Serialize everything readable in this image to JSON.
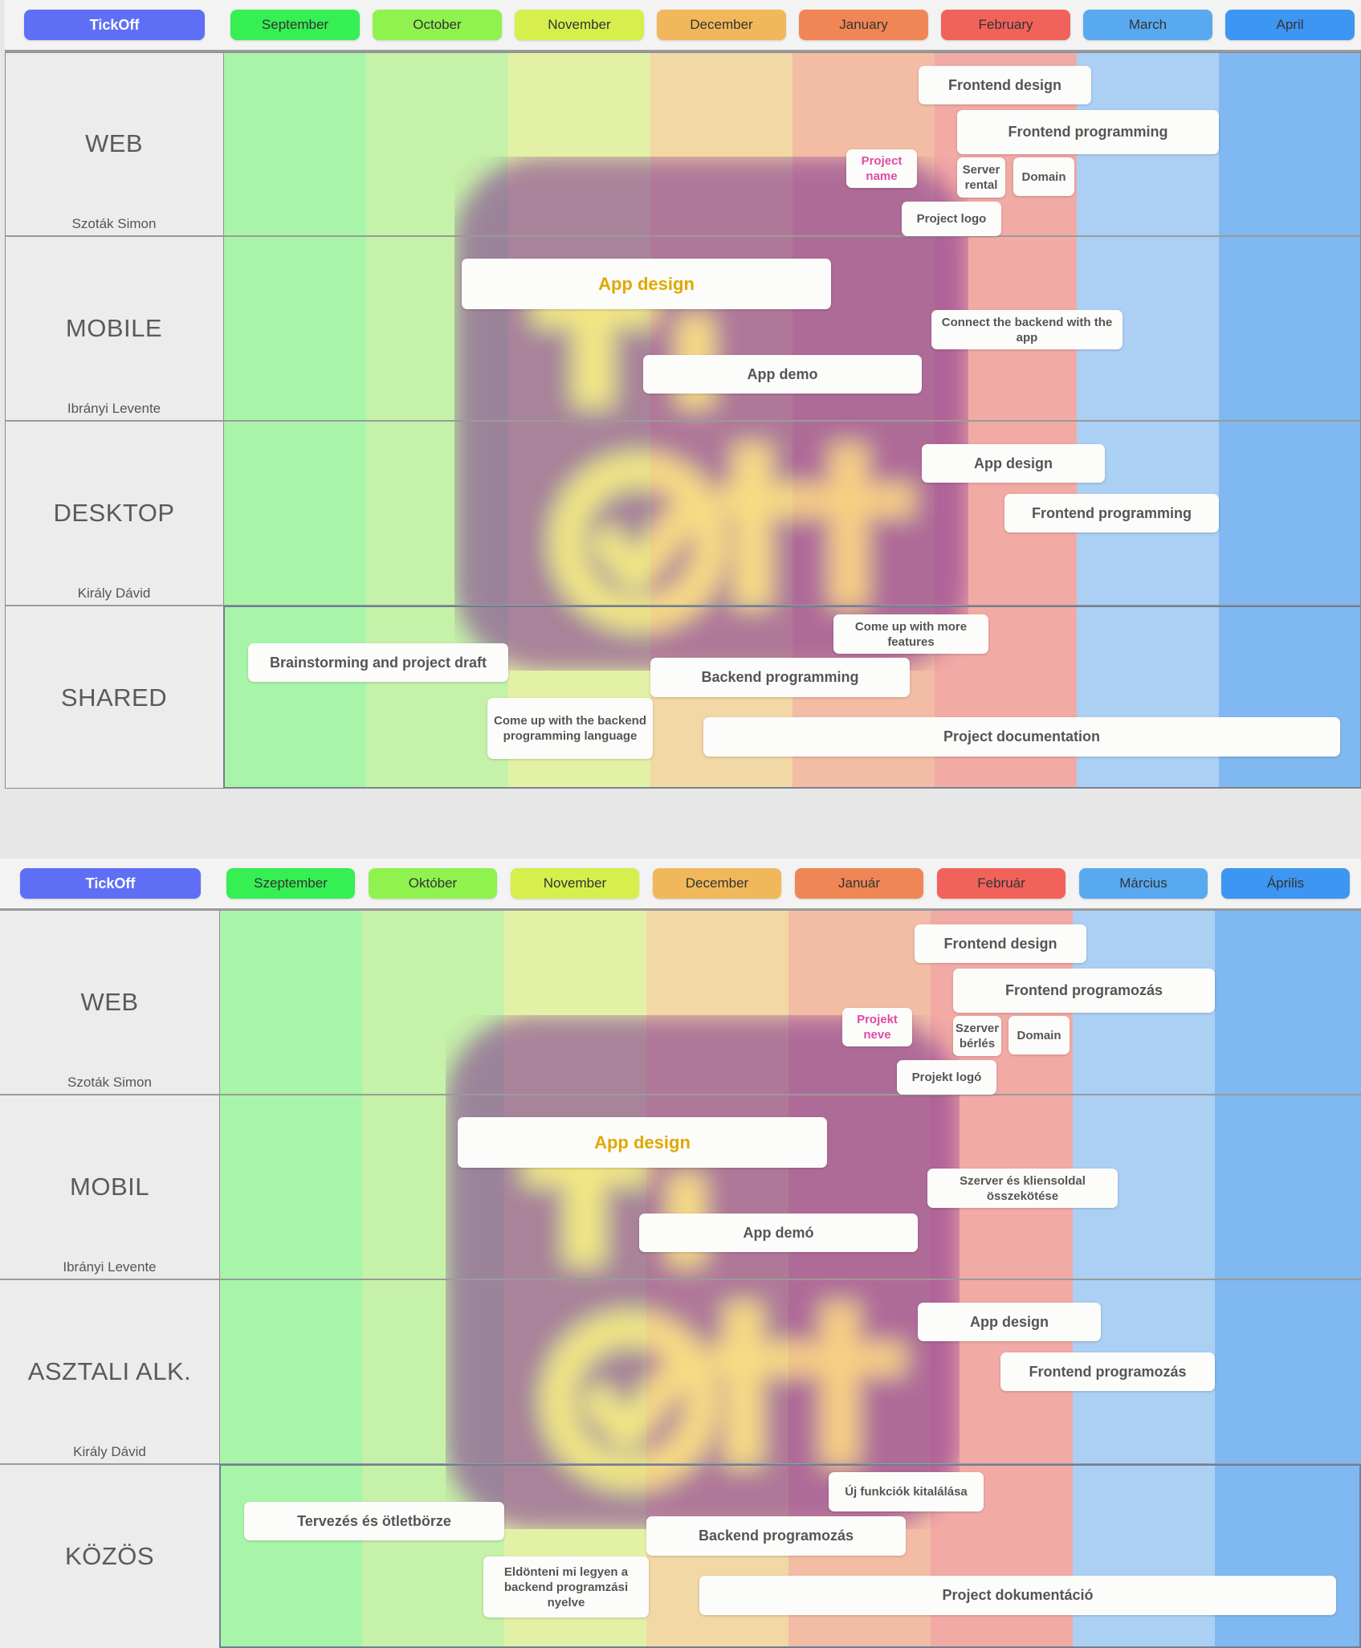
{
  "colors": {
    "brand": "#5f6ff5",
    "months": [
      "#36ef53",
      "#8ff24f",
      "#d6ef4c",
      "#f1b85b",
      "#f08655",
      "#f1625b",
      "#59a9f1",
      "#3d96f1"
    ],
    "columns": [
      "#a8f5a9",
      "#c5f1a8",
      "#e3f1a7",
      "#f2d8a5",
      "#f2bca5",
      "#f2aaa5",
      "#acd0f4",
      "#80b8f1"
    ]
  },
  "boards": [
    {
      "brand": "TickOff",
      "months": [
        "September",
        "October",
        "November",
        "December",
        "January",
        "February",
        "March",
        "April"
      ],
      "rows": [
        {
          "title": "WEB",
          "owner": "Szoták Simon"
        },
        {
          "title": "MOBILE",
          "owner": "Ibrányi Levente"
        },
        {
          "title": "DESKTOP",
          "owner": "Király Dávid"
        },
        {
          "title": "SHARED",
          "owner": ""
        }
      ],
      "tasks": {
        "web_frontend_design": "Frontend design",
        "web_frontend_programming": "Frontend programming",
        "web_project_name": "Project name",
        "web_server_rental": "Server rental",
        "web_domain": "Domain",
        "web_project_logo": "Project logo",
        "mobile_app_design": "App design",
        "mobile_connect_backend": "Connect the backend with the app",
        "mobile_app_demo": "App demo",
        "desktop_app_design": "App design",
        "desktop_frontend_programming": "Frontend programming",
        "shared_more_features": "Come up with more features",
        "shared_brainstorming": "Brainstorming and  project draft",
        "shared_backend_programming": "Backend programming",
        "shared_backend_language": "Come up with the backend programming language",
        "shared_documentation": "Project documentation"
      }
    },
    {
      "brand": "TickOff",
      "months": [
        "Szeptember",
        "Október",
        "November",
        "December",
        "Január",
        "Február",
        "Március",
        "Április"
      ],
      "rows": [
        {
          "title": "WEB",
          "owner": "Szoták Simon"
        },
        {
          "title": "MOBIL",
          "owner": "Ibrányi Levente"
        },
        {
          "title": "ASZTALI ALK.",
          "owner": "Király Dávid"
        },
        {
          "title": "KÖZÖS",
          "owner": ""
        }
      ],
      "tasks": {
        "web_frontend_design": "Frontend design",
        "web_frontend_programming": "Frontend programozás",
        "web_project_name": "Projekt neve",
        "web_server_rental": "Szerver bérlés",
        "web_domain": "Domain",
        "web_project_logo": "Projekt logó",
        "mobile_app_design": "App design",
        "mobile_connect_backend": "Szerver és kliensoldal összekötése",
        "mobile_app_demo": "App demó",
        "desktop_app_design": "App design",
        "desktop_frontend_programming": "Frontend programozás",
        "shared_more_features": "Új funkciók kitalálása",
        "shared_brainstorming": "Tervezés és ötletbörze",
        "shared_backend_programming": "Backend programozás",
        "shared_backend_language": "Eldönteni mi legyen a backend programzási nyelve",
        "shared_documentation": "Project dokumentáció"
      }
    }
  ]
}
